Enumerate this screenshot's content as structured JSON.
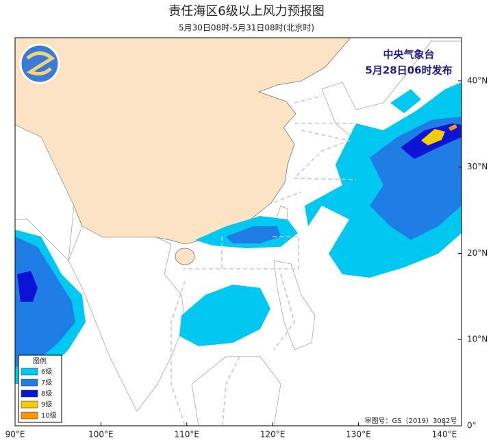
{
  "header": {
    "title": "责任海区6级以上风力预报图",
    "subtitle": "5月30日08时-5月31日08时(北京时)"
  },
  "publisher": {
    "name": "中央气象台",
    "issued": "5月28日06时发布"
  },
  "legend": {
    "title": "图例",
    "levels": [
      {
        "label": "6级",
        "color": "#00c8f0"
      },
      {
        "label": "7级",
        "color": "#1e7ee6"
      },
      {
        "label": "8级",
        "color": "#0a14d2"
      },
      {
        "label": "9级",
        "color": "#f5cc00"
      },
      {
        "label": "10级",
        "color": "#ff9400"
      }
    ]
  },
  "map": {
    "lon_range": [
      90,
      142
    ],
    "lat_range": [
      0,
      45
    ],
    "lon_ticks": [
      {
        "value": 90,
        "label": "90°E"
      },
      {
        "value": 100,
        "label": "100°E"
      },
      {
        "value": 110,
        "label": "110°E"
      },
      {
        "value": 120,
        "label": "120°E"
      },
      {
        "value": 130,
        "label": "130°E"
      },
      {
        "value": 140,
        "label": "140°E"
      }
    ],
    "lat_ticks": [
      {
        "value": 0,
        "label": "0°"
      },
      {
        "value": 10,
        "label": "10°N"
      },
      {
        "value": 20,
        "label": "20°N"
      },
      {
        "value": 30,
        "label": "30°N"
      },
      {
        "value": 40,
        "label": "40°N"
      }
    ]
  },
  "footer": {
    "approval": "审图号：GS（2019）3082号"
  }
}
